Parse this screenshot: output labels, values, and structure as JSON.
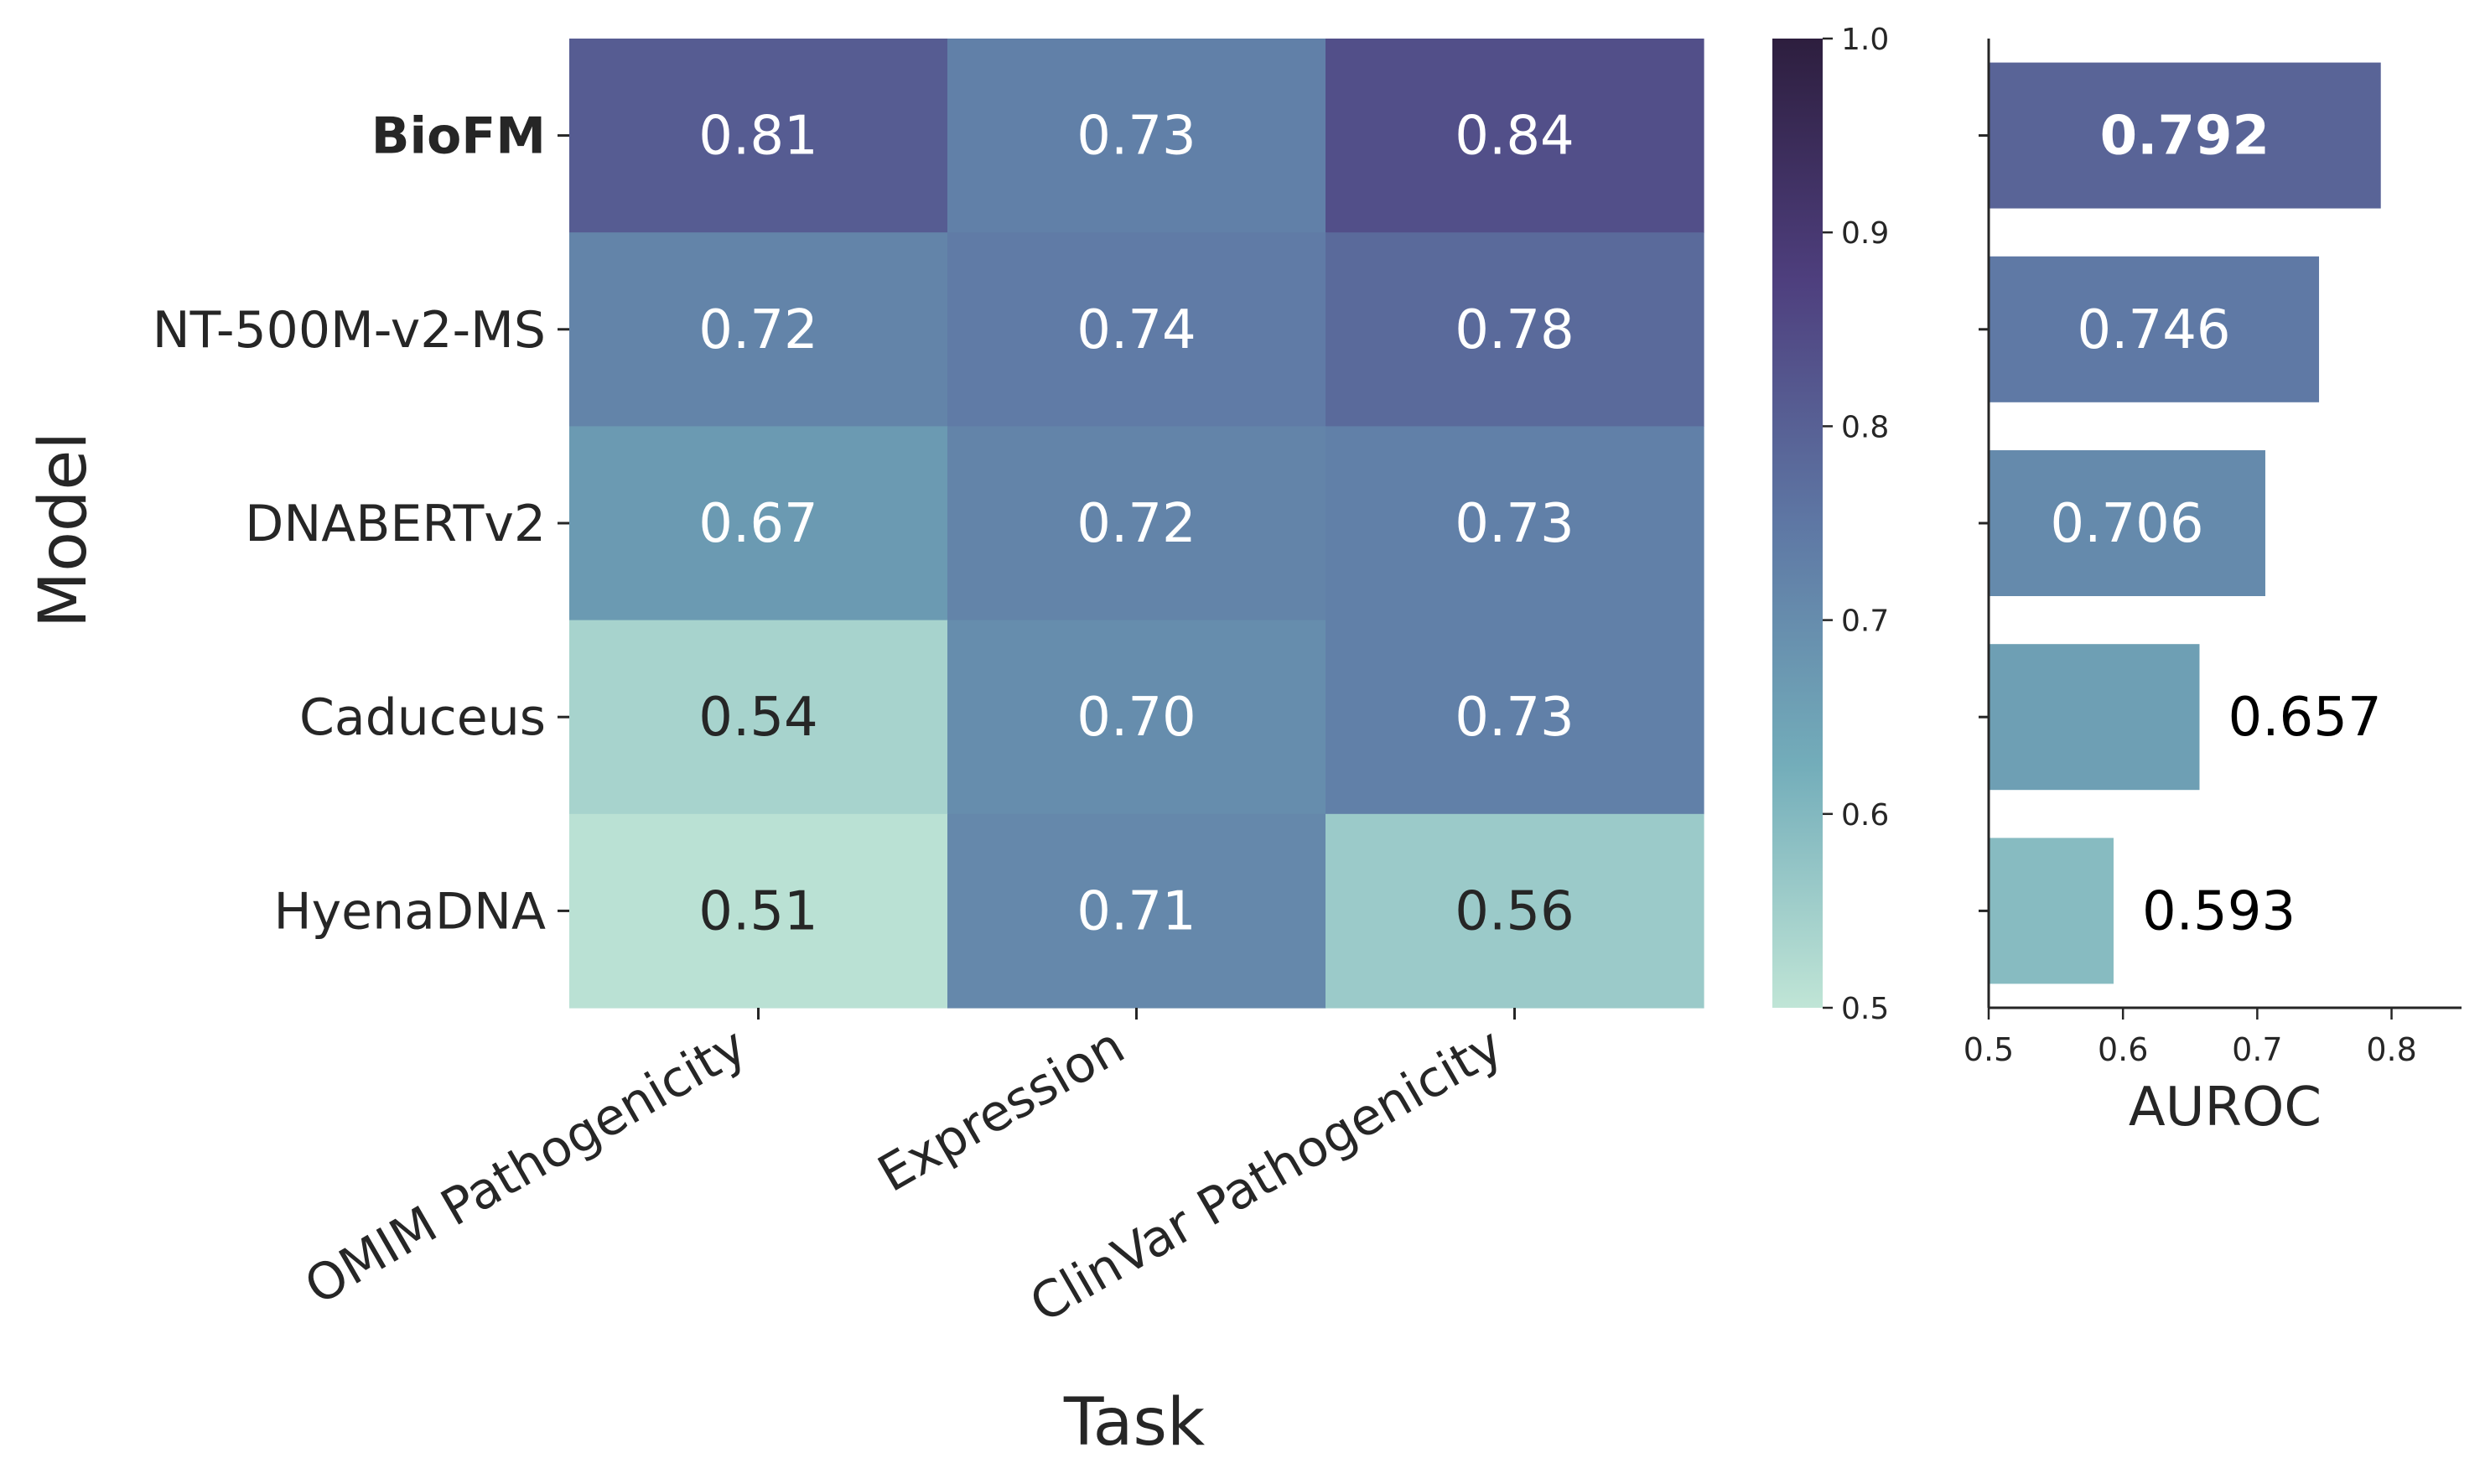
{
  "chart_data": [
    {
      "type": "heatmap",
      "xlabel": "Task",
      "ylabel": "Model",
      "x_categories": [
        "OMIM Pathogenicity",
        "Expression",
        "ClinVar Pathogenicity"
      ],
      "y_categories": [
        "BioFM",
        "NT-500M-v2-MS",
        "DNABERTv2",
        "Caduceus",
        "HyenaDNA"
      ],
      "highlighted_category": "BioFM",
      "values": [
        [
          0.81,
          0.73,
          0.84
        ],
        [
          0.72,
          0.74,
          0.78
        ],
        [
          0.67,
          0.72,
          0.73
        ],
        [
          0.54,
          0.7,
          0.73
        ],
        [
          0.51,
          0.71,
          0.56
        ]
      ],
      "value_labels": [
        [
          "0.81",
          "0.73",
          "0.84"
        ],
        [
          "0.72",
          "0.74",
          "0.78"
        ],
        [
          "0.67",
          "0.72",
          "0.73"
        ],
        [
          "0.54",
          "0.70",
          "0.73"
        ],
        [
          "0.51",
          "0.71",
          "0.56"
        ]
      ],
      "colorbar": {
        "range": [
          0.5,
          1.0
        ],
        "ticks": [
          0.5,
          0.6,
          0.7,
          0.8,
          0.9,
          1.0
        ],
        "tick_labels": [
          "0.5",
          "0.6",
          "0.7",
          "0.8",
          "0.9",
          "1.0"
        ],
        "colors": [
          "#c0e5d6",
          "#73adba",
          "#5e77a4",
          "#4e3f7e",
          "#2d1e3e"
        ]
      }
    },
    {
      "type": "bar",
      "orientation": "horizontal",
      "xlabel": "AUROC",
      "categories": [
        "BioFM",
        "NT-500M-v2-MS",
        "DNABERTv2",
        "Caduceus",
        "HyenaDNA"
      ],
      "values": [
        0.792,
        0.746,
        0.706,
        0.657,
        0.593
      ],
      "value_labels": [
        "0.792",
        "0.746",
        "0.706",
        "0.657",
        "0.593"
      ],
      "xlim": [
        0.5,
        0.85
      ],
      "xticks": [
        0.5,
        0.6,
        0.7,
        0.8
      ],
      "xtick_labels": [
        "0.5",
        "0.6",
        "0.7",
        "0.8"
      ]
    }
  ]
}
